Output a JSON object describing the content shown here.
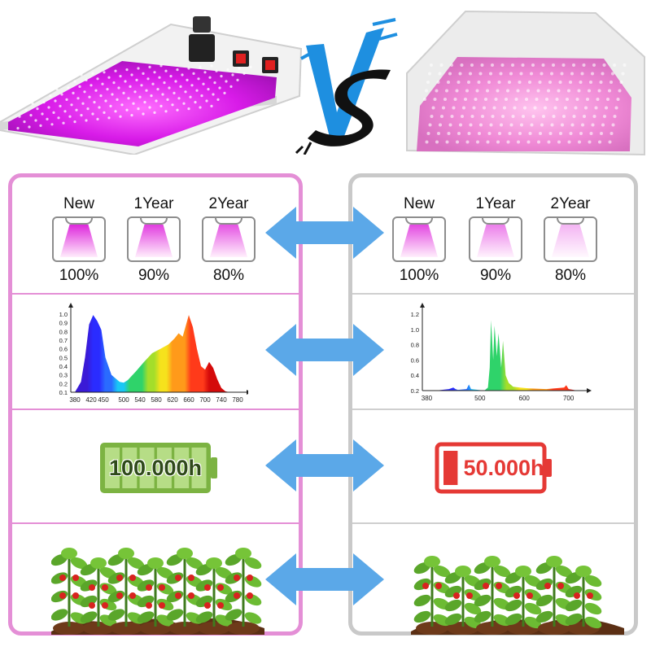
{
  "header": {
    "vs_text": "VS",
    "colors": {
      "left_glow": "#d81be8",
      "right_glow": "#f28bd6",
      "vs_blue": "#1e8fe0",
      "vs_black": "#111111"
    }
  },
  "comparison": {
    "left": {
      "border_color": "#e48fd6",
      "aging": [
        {
          "label": "New",
          "percent": "100%",
          "intensity": 1.0
        },
        {
          "label": "1Year",
          "percent": "90%",
          "intensity": 0.9
        },
        {
          "label": "2Year",
          "percent": "80%",
          "intensity": 0.8
        }
      ],
      "battery": {
        "text": "100.000h",
        "level": 1.0,
        "color": "#7cb342",
        "text_color": "#2f4a1a"
      }
    },
    "right": {
      "border_color": "#c9c9c9",
      "aging": [
        {
          "label": "New",
          "percent": "100%",
          "intensity": 0.85
        },
        {
          "label": "1Year",
          "percent": "90%",
          "intensity": 0.6
        },
        {
          "label": "2Year",
          "percent": "80%",
          "intensity": 0.35
        }
      ],
      "battery": {
        "text": "50.000h",
        "level": 0.15,
        "color": "#e53935",
        "text_color": "#e53935"
      }
    }
  },
  "chart_data": [
    {
      "type": "area",
      "title": "",
      "xlabel": "",
      "ylabel": "",
      "x_ticks": [
        380,
        420,
        450,
        500,
        540,
        580,
        620,
        660,
        700,
        740,
        780
      ],
      "y_ticks": [
        0.1,
        0.2,
        0.3,
        0.4,
        0.5,
        0.6,
        0.7,
        0.8,
        0.9,
        1.0
      ],
      "xlim": [
        370,
        790
      ],
      "ylim": [
        0.1,
        1.0
      ],
      "grid": false,
      "x": [
        380,
        395,
        405,
        415,
        425,
        435,
        445,
        455,
        470,
        490,
        500,
        510,
        530,
        550,
        570,
        590,
        610,
        625,
        635,
        645,
        660,
        670,
        680,
        690,
        700,
        710,
        720,
        730,
        740,
        750,
        760,
        770,
        780
      ],
      "y": [
        0.1,
        0.22,
        0.5,
        0.88,
        0.99,
        0.92,
        0.82,
        0.5,
        0.3,
        0.22,
        0.21,
        0.24,
        0.34,
        0.45,
        0.55,
        0.6,
        0.65,
        0.72,
        0.78,
        0.74,
        0.99,
        0.85,
        0.6,
        0.4,
        0.36,
        0.45,
        0.38,
        0.25,
        0.15,
        0.11,
        0.1,
        0.1,
        0.1
      ]
    },
    {
      "type": "area",
      "title": "",
      "xlabel": "",
      "ylabel": "",
      "x_ticks": [
        380,
        500,
        600,
        700
      ],
      "y_ticks": [
        0.2,
        0.4,
        0.6,
        0.8,
        1.0,
        1.2
      ],
      "xlim": [
        370,
        730
      ],
      "ylim": [
        0.2,
        1.2
      ],
      "grid": false,
      "x": [
        370,
        400,
        430,
        440,
        445,
        450,
        470,
        475,
        480,
        510,
        518,
        522,
        525,
        530,
        533,
        538,
        542,
        548,
        552,
        558,
        565,
        575,
        590,
        610,
        650,
        690,
        695,
        700,
        720
      ],
      "y": [
        0.2,
        0.2,
        0.22,
        0.24,
        0.22,
        0.21,
        0.22,
        0.28,
        0.22,
        0.2,
        0.24,
        0.5,
        1.12,
        0.6,
        1.05,
        0.65,
        0.95,
        0.5,
        0.85,
        0.4,
        0.3,
        0.25,
        0.24,
        0.23,
        0.22,
        0.24,
        0.27,
        0.22,
        0.2
      ]
    }
  ]
}
